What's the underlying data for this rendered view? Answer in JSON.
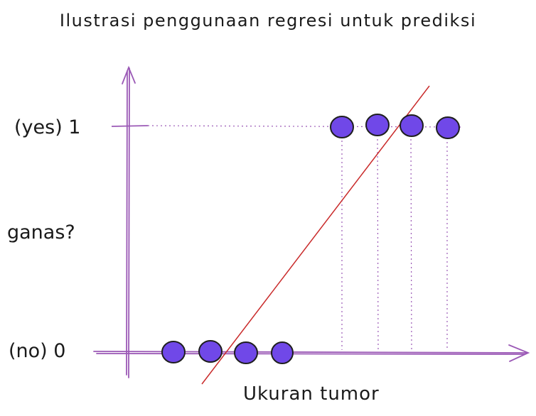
{
  "title": "Ilustrasi penggunaan regresi untuk prediksi",
  "y_label": "ganas?",
  "y_tick_yes": "(yes) 1",
  "y_tick_no": "(no) 0",
  "x_label": "Ukuran tumor",
  "colors": {
    "axis": "#9b59b6",
    "point_fill": "#7048e8",
    "point_stroke": "#1e1e1e",
    "regression_line": "#c92a2a",
    "guide": "#9b59b6"
  },
  "points_no": [
    1,
    2,
    3,
    4
  ],
  "points_yes": [
    6,
    7,
    8,
    9
  ]
}
